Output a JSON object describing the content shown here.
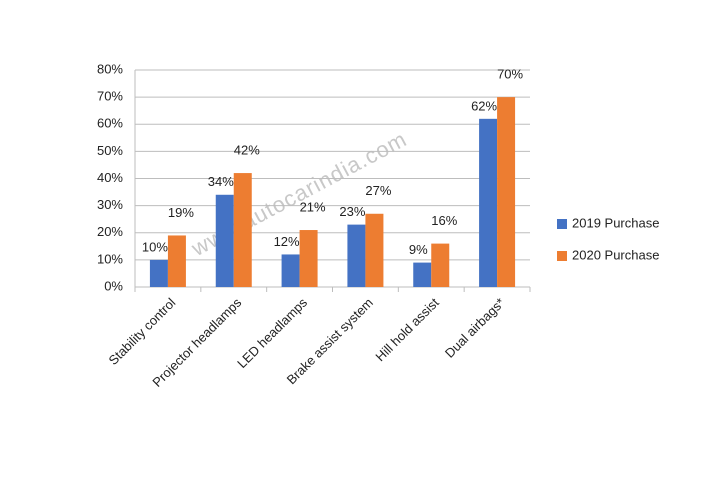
{
  "chart_data": {
    "type": "bar",
    "categories": [
      "Stability control",
      "Projector headlamps",
      "LED headlamps",
      "Brake assist system",
      "Hill hold assist",
      "Dual airbags*"
    ],
    "series": [
      {
        "name": "2019 Purchase",
        "color": "#4472c4",
        "values": [
          10,
          34,
          12,
          23,
          9,
          62
        ],
        "value_labels": [
          "10%",
          "34%",
          "12%",
          "23%",
          "9%",
          "62%"
        ]
      },
      {
        "name": "2020 Purchase",
        "color": "#ed7d31",
        "values": [
          19,
          42,
          21,
          27,
          16,
          70
        ],
        "value_labels": [
          "19%",
          "42%",
          "21%",
          "27%",
          "16%",
          "70%"
        ]
      }
    ],
    "ylim": [
      0,
      80
    ],
    "yticks": [
      {
        "value": 0,
        "label": "0%"
      },
      {
        "value": 10,
        "label": "10%"
      },
      {
        "value": 20,
        "label": "20%"
      },
      {
        "value": 30,
        "label": "30%"
      },
      {
        "value": 40,
        "label": "40%"
      },
      {
        "value": 50,
        "label": "50%"
      },
      {
        "value": 60,
        "label": "60%"
      },
      {
        "value": 70,
        "label": "70%"
      },
      {
        "value": 80,
        "label": "80%"
      }
    ],
    "grid": true,
    "legend": "right",
    "watermark": "www.autocarindia.com"
  }
}
